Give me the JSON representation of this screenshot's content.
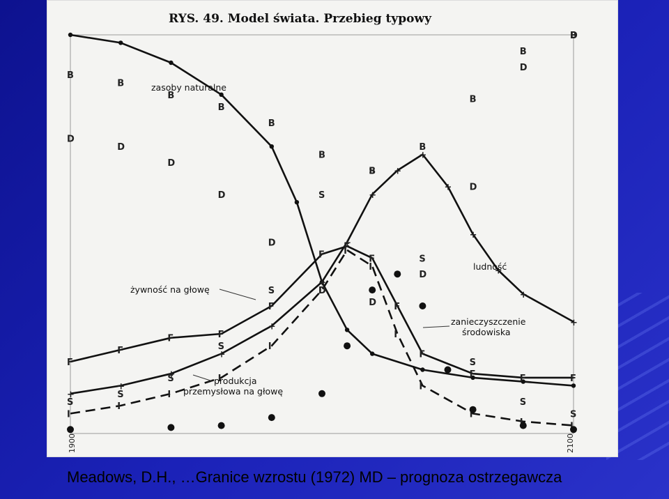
{
  "caption": "Meadows, D.H., …Granice wzrostu (1972) MD – prognoza ostrzegawcza",
  "colors": {
    "background": "#1a1fa8",
    "scan": "#f4f4f2",
    "ink": "#111111"
  },
  "chart_data": {
    "type": "line",
    "title": "RYS. 49. Model świata. Przebieg typowy",
    "xlabel": "",
    "ylabel": "",
    "x_ticks": [
      "1900",
      "2100"
    ],
    "xlim": [
      1900,
      2100
    ],
    "ylim": [
      0,
      1
    ],
    "grid": false,
    "annotations": [
      "zasoby naturalne",
      "ludność",
      "żywność na głowę",
      "zanieczyszczenie",
      "środowiska",
      "produkcja",
      "przemysłowa na głowę"
    ],
    "series": [
      {
        "name": "zasoby naturalne",
        "style": "solid",
        "marker": "dot",
        "x": [
          1900,
          1920,
          1940,
          1960,
          1980,
          1990,
          2000,
          2010,
          2020,
          2040,
          2060,
          2080,
          2100
        ],
        "y": [
          1.0,
          0.98,
          0.93,
          0.85,
          0.72,
          0.58,
          0.38,
          0.26,
          0.2,
          0.16,
          0.14,
          0.13,
          0.12
        ]
      },
      {
        "name": "ludność",
        "style": "solid",
        "marker": "cross",
        "x": [
          1900,
          1920,
          1940,
          1960,
          1980,
          2000,
          2010,
          2020,
          2030,
          2040,
          2050,
          2060,
          2070,
          2080,
          2100
        ],
        "y": [
          0.1,
          0.12,
          0.15,
          0.2,
          0.27,
          0.38,
          0.48,
          0.6,
          0.66,
          0.7,
          0.62,
          0.5,
          0.41,
          0.35,
          0.28
        ]
      },
      {
        "name": "żywność na głowę",
        "style": "solid",
        "marker": "F",
        "x": [
          1900,
          1920,
          1940,
          1960,
          1980,
          2000,
          2010,
          2020,
          2030,
          2040,
          2060,
          2080,
          2100
        ],
        "y": [
          0.18,
          0.21,
          0.24,
          0.25,
          0.32,
          0.45,
          0.47,
          0.44,
          0.32,
          0.2,
          0.15,
          0.14,
          0.14
        ]
      },
      {
        "name": "produkcja przemysłowa na głowę",
        "style": "dashed",
        "marker": "I",
        "x": [
          1900,
          1920,
          1940,
          1960,
          1980,
          2000,
          2010,
          2020,
          2030,
          2040,
          2060,
          2080,
          2100
        ],
        "y": [
          0.05,
          0.07,
          0.1,
          0.14,
          0.22,
          0.36,
          0.46,
          0.42,
          0.25,
          0.12,
          0.05,
          0.03,
          0.02
        ]
      },
      {
        "name": "zanieczyszczenie środowiska",
        "style": "dotted-dots",
        "marker": "dot",
        "x": [
          1900,
          1940,
          1960,
          1980,
          2000,
          2010,
          2020,
          2030,
          2040,
          2050,
          2060,
          2080,
          2100
        ],
        "y": [
          0.01,
          0.015,
          0.02,
          0.04,
          0.1,
          0.22,
          0.36,
          0.4,
          0.32,
          0.16,
          0.06,
          0.02,
          0.01
        ]
      },
      {
        "name": "B",
        "style": "markers",
        "marker": "B",
        "x": [
          1900,
          1920,
          1940,
          1960,
          1980,
          2000,
          2020,
          2040,
          2060,
          2080,
          2100
        ],
        "y": [
          0.9,
          0.88,
          0.85,
          0.82,
          0.78,
          0.7,
          0.66,
          0.72,
          0.84,
          0.96,
          1.0
        ]
      },
      {
        "name": "D",
        "style": "markers",
        "marker": "D",
        "x": [
          1900,
          1920,
          1940,
          1960,
          1980,
          2000,
          2020,
          2040,
          2060,
          2080,
          2100
        ],
        "y": [
          0.74,
          0.72,
          0.68,
          0.6,
          0.48,
          0.36,
          0.33,
          0.4,
          0.62,
          0.92,
          1.0
        ]
      },
      {
        "name": "S",
        "style": "markers",
        "marker": "S",
        "x": [
          1900,
          1920,
          1940,
          1960,
          1980,
          2000,
          2020,
          2040,
          2060,
          2080,
          2100
        ],
        "y": [
          0.08,
          0.1,
          0.14,
          0.22,
          0.36,
          0.6,
          0.66,
          0.44,
          0.18,
          0.08,
          0.05
        ]
      }
    ]
  }
}
